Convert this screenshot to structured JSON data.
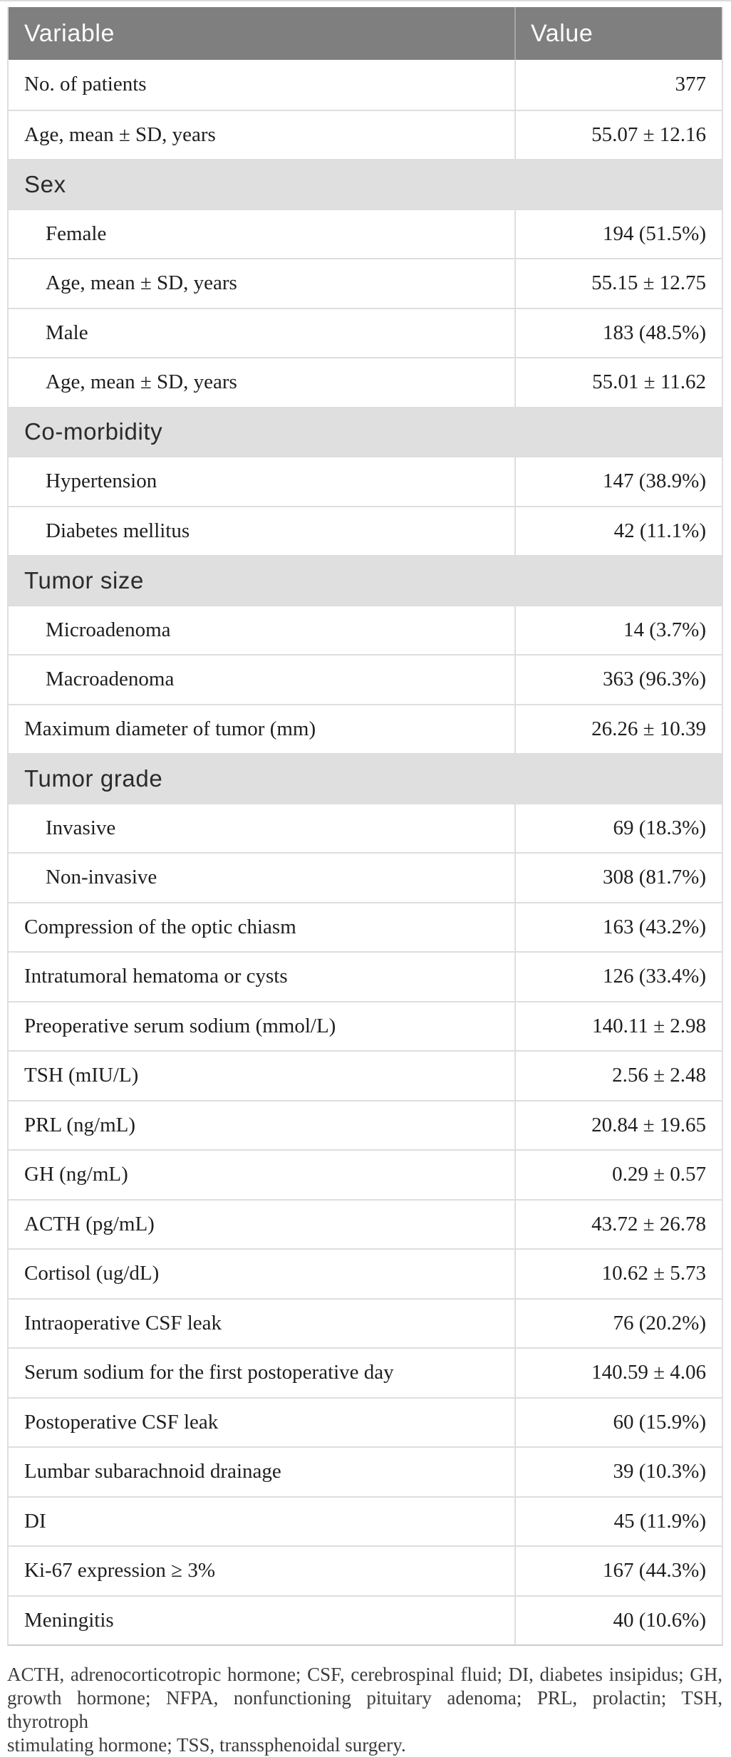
{
  "table": {
    "header": {
      "variable": "Variable",
      "value": "Value"
    },
    "rows": [
      {
        "type": "data",
        "label": "No. of patients",
        "value": "377",
        "indent": false
      },
      {
        "type": "data",
        "label": "Age, mean ± SD, years",
        "value": "55.07 ± 12.16",
        "indent": false
      },
      {
        "type": "section",
        "label": "Sex"
      },
      {
        "type": "data",
        "label": "Female",
        "value": "194 (51.5%)",
        "indent": true
      },
      {
        "type": "data",
        "label": "Age, mean ± SD, years",
        "value": "55.15 ± 12.75",
        "indent": true
      },
      {
        "type": "data",
        "label": "Male",
        "value": "183 (48.5%)",
        "indent": true
      },
      {
        "type": "data",
        "label": "Age, mean ± SD, years",
        "value": "55.01 ± 11.62",
        "indent": true
      },
      {
        "type": "section",
        "label": "Co-morbidity"
      },
      {
        "type": "data",
        "label": "Hypertension",
        "value": "147 (38.9%)",
        "indent": true
      },
      {
        "type": "data",
        "label": "Diabetes mellitus",
        "value": "42 (11.1%)",
        "indent": true
      },
      {
        "type": "section",
        "label": "Tumor size"
      },
      {
        "type": "data",
        "label": "Microadenoma",
        "value": "14 (3.7%)",
        "indent": true
      },
      {
        "type": "data",
        "label": "Macroadenoma",
        "value": "363 (96.3%)",
        "indent": true
      },
      {
        "type": "data",
        "label": "Maximum diameter of tumor (mm)",
        "value": "26.26 ± 10.39",
        "indent": false
      },
      {
        "type": "section",
        "label": "Tumor grade"
      },
      {
        "type": "data",
        "label": "Invasive",
        "value": "69 (18.3%)",
        "indent": true
      },
      {
        "type": "data",
        "label": "Non-invasive",
        "value": "308 (81.7%)",
        "indent": true
      },
      {
        "type": "data",
        "label": "Compression of the optic chiasm",
        "value": "163 (43.2%)",
        "indent": false
      },
      {
        "type": "data",
        "label": "Intratumoral hematoma or cysts",
        "value": "126 (33.4%)",
        "indent": false
      },
      {
        "type": "data",
        "label": "Preoperative serum sodium (mmol/L)",
        "value": "140.11 ± 2.98",
        "indent": false
      },
      {
        "type": "data",
        "label": "TSH (mIU/L)",
        "value": "2.56 ± 2.48",
        "indent": false
      },
      {
        "type": "data",
        "label": "PRL (ng/mL)",
        "value": "20.84 ± 19.65",
        "indent": false
      },
      {
        "type": "data",
        "label": "GH (ng/mL)",
        "value": "0.29 ± 0.57",
        "indent": false
      },
      {
        "type": "data",
        "label": "ACTH (pg/mL)",
        "value": "43.72 ± 26.78",
        "indent": false
      },
      {
        "type": "data",
        "label": "Cortisol (ug/dL)",
        "value": "10.62 ± 5.73",
        "indent": false
      },
      {
        "type": "data",
        "label": "Intraoperative CSF leak",
        "value": "76 (20.2%)",
        "indent": false
      },
      {
        "type": "data",
        "label": "Serum sodium for the first postoperative day",
        "value": "140.59 ± 4.06",
        "indent": false
      },
      {
        "type": "data",
        "label": "Postoperative CSF leak",
        "value": "60 (15.9%)",
        "indent": false
      },
      {
        "type": "data",
        "label": "Lumbar subarachnoid drainage",
        "value": "39 (10.3%)",
        "indent": false
      },
      {
        "type": "data",
        "label": "DI",
        "value": "45 (11.9%)",
        "indent": false
      },
      {
        "type": "data",
        "label": "Ki-67 expression ≥ 3%",
        "value": "167 (44.3%)",
        "indent": false
      },
      {
        "type": "data",
        "label": "Meningitis",
        "value": "40 (10.6%)",
        "indent": false
      }
    ]
  },
  "footnote": {
    "full_text": "ACTH, adrenocorticotropic hormone; CSF, cerebrospinal fluid; DI, diabetes insipidus; GH, growth hormone; NFPA, nonfunctioning pituitary adenoma; PRL, prolactin; TSH, thyrotroph stimulating hormone; TSS, transsphenoidal surgery.",
    "lines": [
      "ACTH, adrenocorticotropic hormone; CSF, cerebrospinal fluid; DI, diabetes insipidus; GH,",
      "growth hormone; NFPA, nonfunctioning pituitary adenoma; PRL, prolactin; TSH, thyrotroph",
      "stimulating hormone; TSS, transsphenoidal surgery."
    ]
  },
  "colors": {
    "header_bg": "#7f7f7f",
    "header_text": "#fcfcfc",
    "section_bg": "#dfdfdf",
    "divider": "#dedede",
    "body_text": "#1e1e1e",
    "footnote_text": "#3c3c3c"
  }
}
